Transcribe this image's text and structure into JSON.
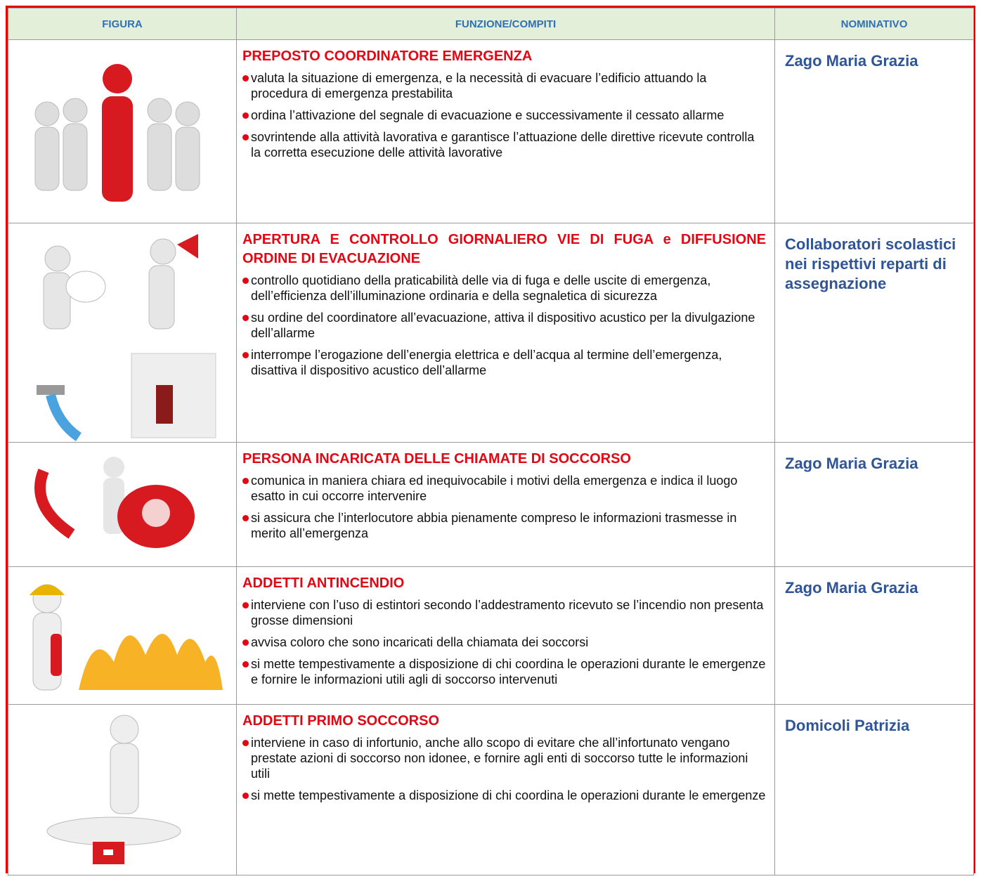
{
  "header": {
    "columns": [
      "FIGURA",
      "FUNZIONE/COMPITI",
      "NOMINATIVO"
    ]
  },
  "rows": [
    {
      "title": "PREPOSTO COORDINATORE EMERGENZA",
      "tasks": [
        "valuta la situazione di emergenza, e la necessità di evacuare l’edificio attuando la procedura di emergenza prestabilita",
        "ordina l’attivazione del segnale di evacuazione e successivamente il cessato allarme",
        "sovrintende alla attività lavorativa e garantisce l’attuazione delle direttive ricevute controlla la corretta esecuzione delle attività lavorative"
      ],
      "name": "Zago Maria Grazia"
    },
    {
      "title": "APERTURA E CONTROLLO GIORNALIERO VIE DI FUGA e DIFFUSIONE ORDINE DI EVACUAZIONE",
      "tasks": [
        "controllo quotidiano della praticabilità delle via di fuga e delle uscite di emergenza, dell’efficienza dell’illuminazione ordinaria e della segnaletica di sicurezza",
        "su ordine del coordinatore all’evacuazione, attiva il dispositivo acustico per la divulgazione dell’allarme",
        "interrompe l’erogazione dell’energia elettrica e dell’acqua al termine dell’emergenza, disattiva il dispositivo acustico dell’allarme"
      ],
      "name": "Collaboratori scolastici nei rispettivi reparti di assegnazione"
    },
    {
      "title": "PERSONA INCARICATA DELLE CHIAMATE DI SOCCORSO",
      "tasks": [
        "comunica in maniera chiara ed inequivocabile  i motivi della emergenza e indica il luogo esatto in cui occorre intervenire",
        "si assicura che l’interlocutore abbia pienamente compreso le informazioni trasmesse in merito all’emergenza"
      ],
      "name": "Zago Maria Grazia"
    },
    {
      "title": "ADDETTI ANTINCENDIO",
      "tasks": [
        "interviene con l’uso di estintori secondo l’addestramento ricevuto se l’incendio non presenta grosse dimensioni",
        "avvisa coloro che sono incaricati della chiamata dei soccorsi",
        "si mette tempestivamente a disposizione di chi coordina le operazioni durante le emergenze e fornire le informazioni utili agli di soccorso intervenuti"
      ],
      "name": "Zago Maria Grazia"
    },
    {
      "title": "ADDETTI PRIMO SOCCORSO",
      "tasks": [
        "interviene in caso di infortunio, anche allo scopo di evitare che all’infortunato vengano prestate azioni di soccorso non idonee, e fornire agli enti di soccorso tutte le informazioni utili",
        "si mette tempestivamente a disposizione di chi coordina le operazioni durante le emergenze"
      ],
      "name": "Domicoli Patrizia"
    }
  ]
}
